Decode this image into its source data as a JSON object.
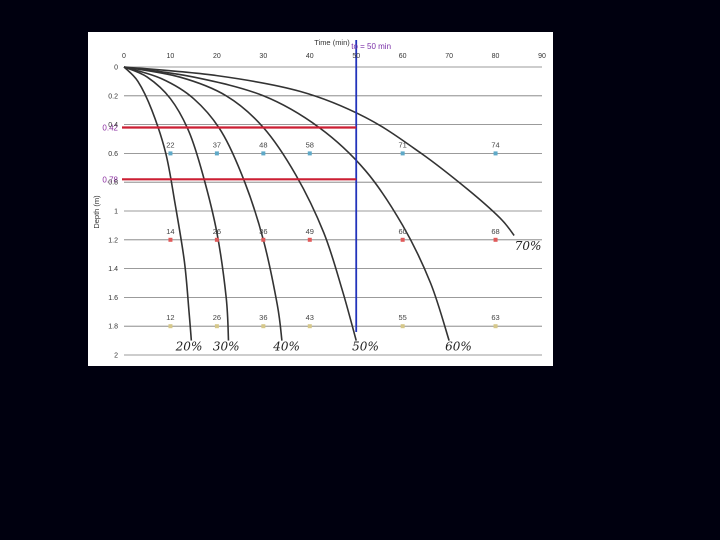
{
  "chart_data": {
    "type": "line",
    "xlabel": "Time (min)",
    "ylabel": "Depth (m)",
    "xlim": [
      0,
      90
    ],
    "ylim": [
      0,
      2
    ],
    "x_ticks": [
      "0",
      "10",
      "20",
      "30",
      "40",
      "50",
      "60",
      "70",
      "80",
      "90"
    ],
    "y_ticks": [
      "0",
      "0.2",
      "0.4",
      "0.6",
      "0.8",
      "1",
      "1.2",
      "1.4",
      "1.6",
      "1.8",
      "2"
    ],
    "x_tick_values": [
      0,
      10,
      20,
      30,
      40,
      50,
      60,
      70,
      80,
      90
    ],
    "y_tick_values": [
      0,
      0.2,
      0.4,
      0.6,
      0.8,
      1.0,
      1.2,
      1.4,
      1.6,
      1.8,
      2.0
    ],
    "grid": {
      "horizontal": true,
      "vertical": false
    },
    "series": [
      {
        "name": "20%",
        "x": [
          0,
          3,
          6,
          9,
          11,
          13,
          14,
          14.5
        ],
        "y": [
          0,
          0.1,
          0.3,
          0.6,
          0.95,
          1.35,
          1.7,
          1.9
        ],
        "label_x": 14,
        "label_y": 1.97
      },
      {
        "name": "30%",
        "x": [
          0,
          5,
          10,
          14,
          17,
          20,
          22,
          22.5
        ],
        "y": [
          0,
          0.07,
          0.22,
          0.45,
          0.75,
          1.15,
          1.6,
          1.9
        ],
        "label_x": 22,
        "label_y": 1.97
      },
      {
        "name": "40%",
        "x": [
          0,
          8,
          15,
          21,
          26,
          30,
          33,
          34
        ],
        "y": [
          0,
          0.08,
          0.22,
          0.45,
          0.8,
          1.2,
          1.65,
          1.9
        ],
        "label_x": 35,
        "label_y": 1.97
      },
      {
        "name": "50%",
        "x": [
          0,
          12,
          22,
          30,
          37,
          43,
          47,
          50
        ],
        "y": [
          0,
          0.07,
          0.2,
          0.42,
          0.75,
          1.15,
          1.55,
          1.9
        ],
        "label_x": 52,
        "label_y": 1.97
      },
      {
        "name": "60%",
        "x": [
          0,
          15,
          30,
          42,
          52,
          60,
          66,
          70
        ],
        "y": [
          0,
          0.07,
          0.2,
          0.42,
          0.72,
          1.1,
          1.5,
          1.9
        ],
        "label_x": 72,
        "label_y": 1.97
      },
      {
        "name": "70%",
        "x": [
          0,
          20,
          38,
          52,
          64,
          74,
          81,
          84
        ],
        "y": [
          0,
          0.06,
          0.17,
          0.35,
          0.6,
          0.85,
          1.05,
          1.17
        ],
        "label_x": 87,
        "label_y": 1.27
      }
    ],
    "points": [
      {
        "depth": 0.6,
        "color": "#5fa9c8",
        "x": [
          10,
          20,
          30,
          40,
          60,
          80
        ],
        "labels": [
          "22",
          "37",
          "48",
          "58",
          "71",
          "74"
        ]
      },
      {
        "depth": 1.2,
        "color": "#e05a5a",
        "x": [
          10,
          20,
          30,
          40,
          60,
          80
        ],
        "labels": [
          "14",
          "26",
          "36",
          "49",
          "60",
          "68"
        ]
      },
      {
        "depth": 1.8,
        "color": "#d6c88a",
        "x": [
          10,
          20,
          30,
          40,
          60,
          80
        ],
        "labels": [
          "12",
          "26",
          "36",
          "43",
          "55",
          "63"
        ]
      }
    ],
    "annotations": {
      "vertical_line": {
        "x": 50,
        "label": "to = 50 min",
        "color": "#2233bb",
        "label_color": "#7a2fa8"
      },
      "horizontal_lines": [
        {
          "y": 0.42,
          "label": "0.42",
          "color": "#cc1f33",
          "label_color": "#8b2fa0",
          "x_end": 50
        },
        {
          "y": 0.78,
          "label": "0.78",
          "color": "#cc1f33",
          "label_color": "#8b2fa0",
          "x_end": 50
        }
      ]
    }
  }
}
